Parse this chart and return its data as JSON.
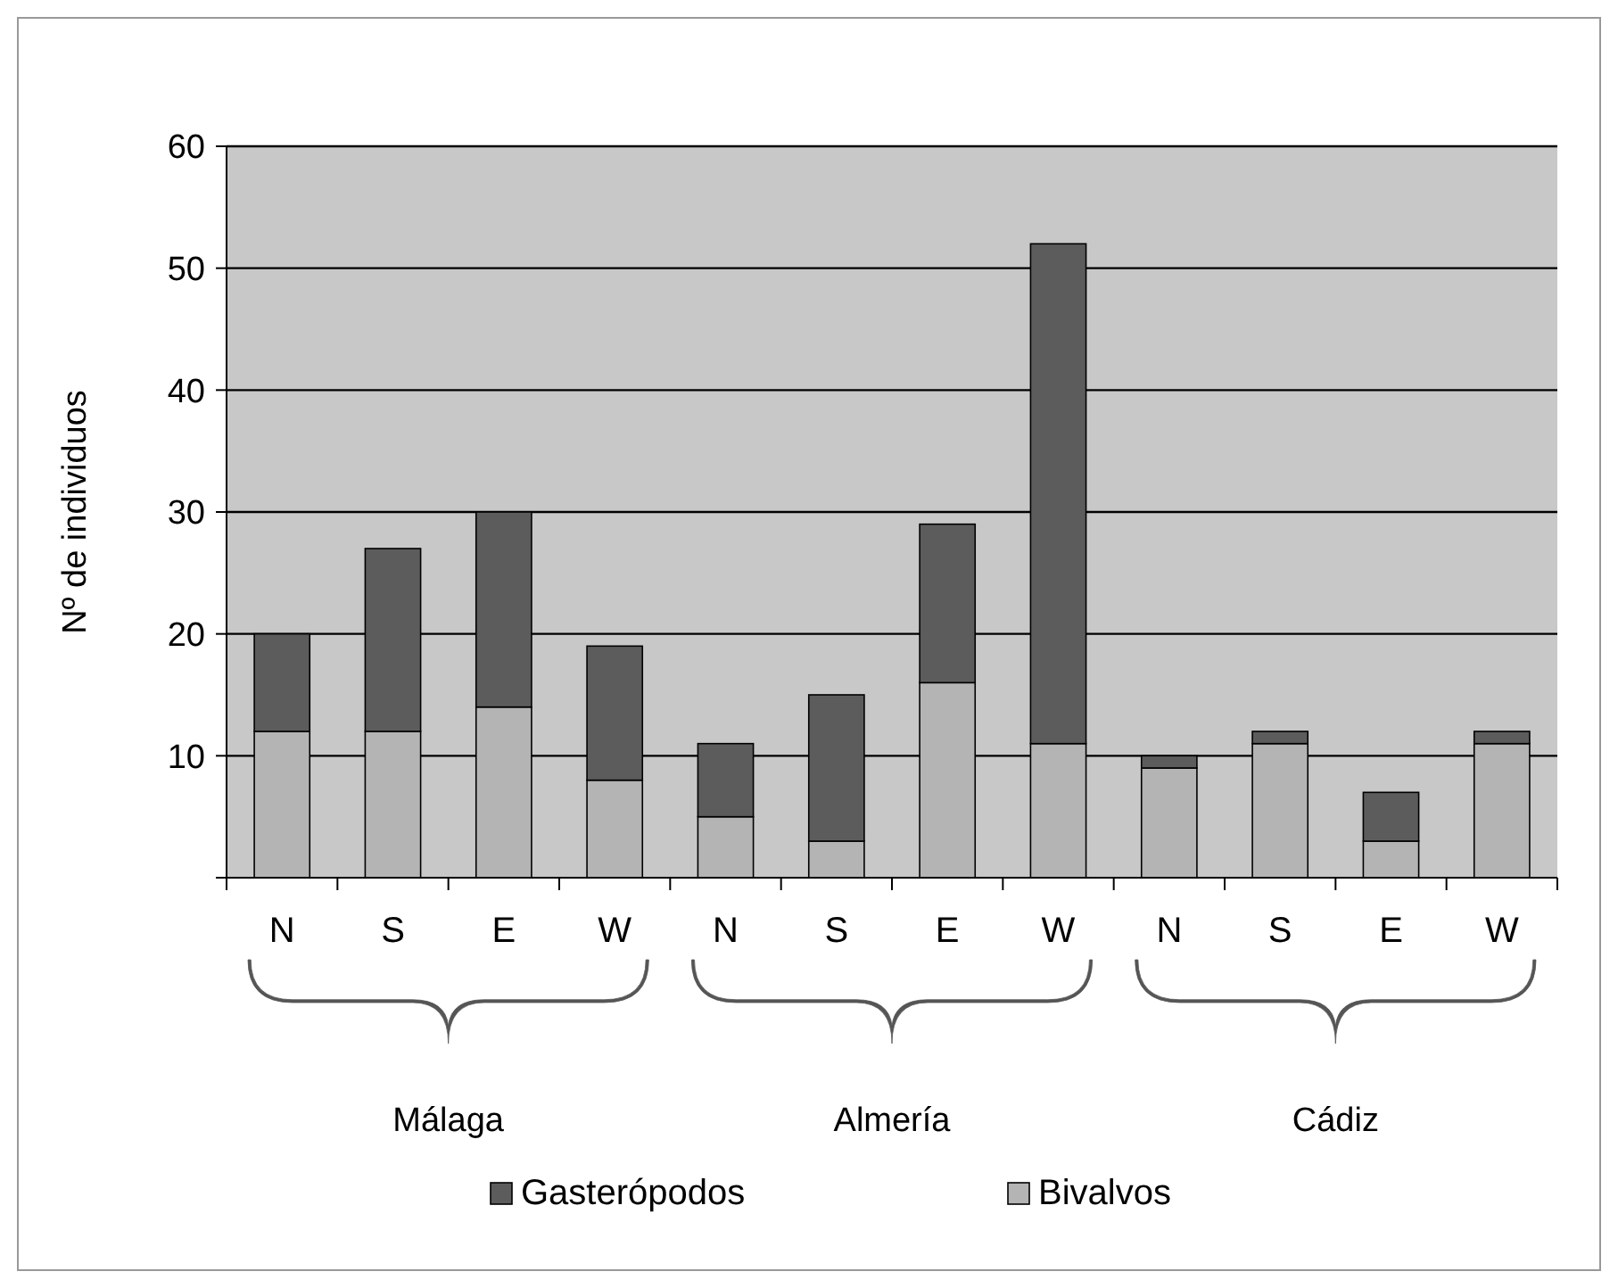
{
  "chart_data": {
    "type": "bar",
    "ylabel": "Nº de individuos",
    "categories": [
      "N",
      "S",
      "E",
      "W",
      "N",
      "S",
      "E",
      "W",
      "N",
      "S",
      "E",
      "W"
    ],
    "series": [
      {
        "name": "Bivalvos",
        "color": "#b4b4b4",
        "values": [
          12,
          12,
          14,
          8,
          5,
          3,
          16,
          11,
          9,
          11,
          3,
          11
        ]
      },
      {
        "name": "Gasterópodos",
        "color": "#5c5c5c",
        "values": [
          8,
          15,
          16,
          11,
          6,
          12,
          13,
          41,
          1,
          1,
          4,
          1
        ]
      }
    ],
    "stacked": true,
    "ylim": [
      0,
      60
    ],
    "yticks": [
      {
        "value": 0,
        "label": null
      },
      10,
      20,
      30,
      40,
      50,
      60
    ],
    "grid": "y",
    "legend": "bottom",
    "annotations": [
      "Málaga",
      "Almería",
      "Cádiz"
    ]
  }
}
